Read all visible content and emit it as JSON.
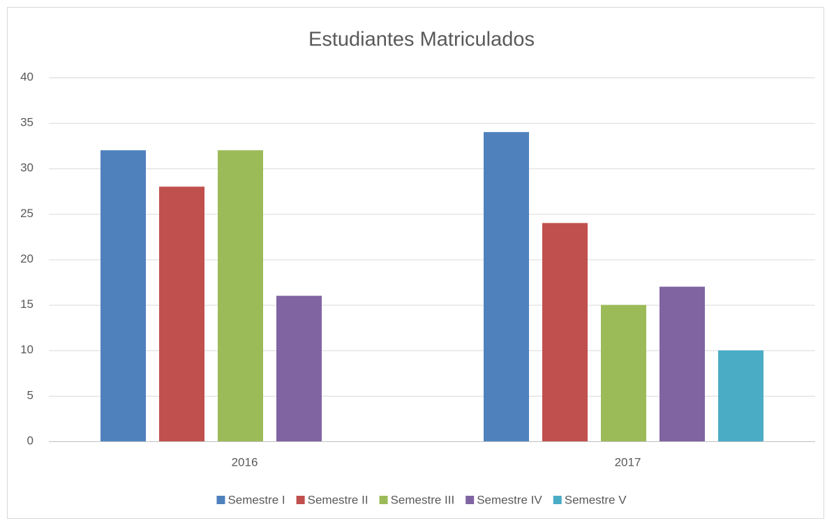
{
  "chart_data": {
    "type": "bar",
    "title": "Estudiantes Matriculados",
    "categories": [
      "2016",
      "2017"
    ],
    "series": [
      {
        "name": "Semestre I",
        "color": "#4f81bd",
        "values": [
          32,
          34
        ]
      },
      {
        "name": "Semestre II",
        "color": "#c0504d",
        "values": [
          28,
          24
        ]
      },
      {
        "name": "Semestre III",
        "color": "#9bbb59",
        "values": [
          32,
          15
        ]
      },
      {
        "name": "Semestre IV",
        "color": "#8064a2",
        "values": [
          16,
          17
        ]
      },
      {
        "name": "Semestre V",
        "color": "#4bacc6",
        "values": [
          null,
          10
        ]
      }
    ],
    "ylim": [
      0,
      40
    ],
    "yticks": [
      0,
      5,
      10,
      15,
      20,
      25,
      30,
      35,
      40
    ],
    "grid": true,
    "legend": "bottom"
  }
}
